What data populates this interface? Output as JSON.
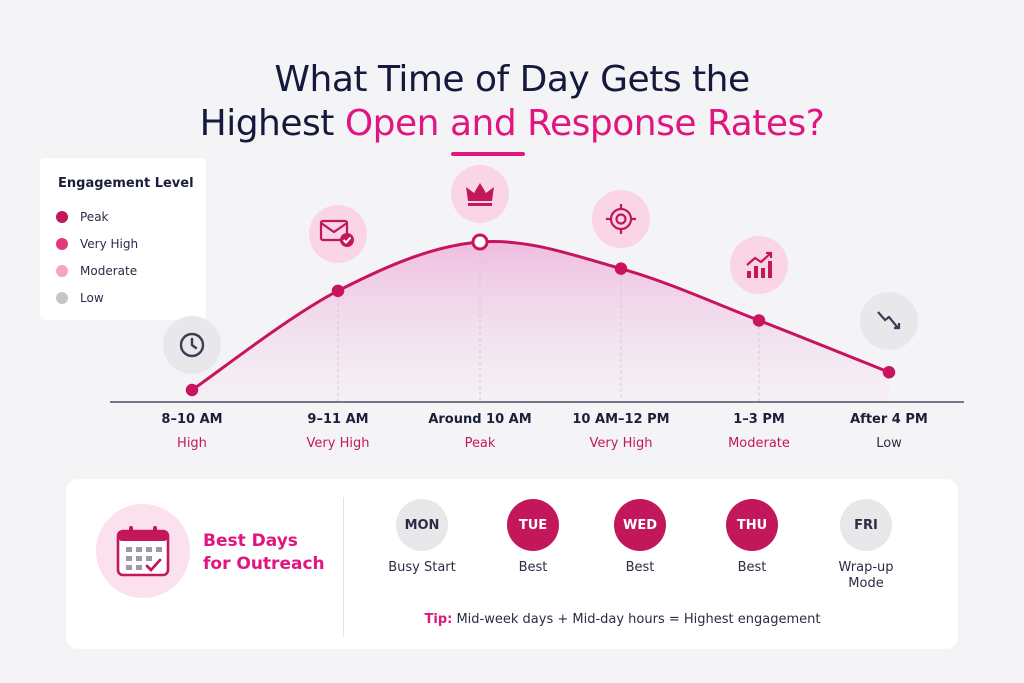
{
  "title_line1": "What Time of Day Gets the",
  "title_line2_plain": "Highest",
  "title_line2_accent": "Open and Response Rates?",
  "legend": {
    "title": "Engagement Level",
    "items": [
      {
        "label": "Peak",
        "color": "#c2185b"
      },
      {
        "label": "Very High",
        "color": "#e4387c"
      },
      {
        "label": "Moderate",
        "color": "#f6a3c6"
      },
      {
        "label": "Low",
        "color": "#c6c6c9"
      }
    ]
  },
  "chart_data": {
    "type": "area",
    "categories": [
      "8–10 AM",
      "9–11 AM",
      "Around 10 AM",
      "10 AM–12 PM",
      "1–3 PM",
      "After 4 PM"
    ],
    "levels": [
      "High",
      "Very High",
      "Peak",
      "Very High",
      "Moderate",
      "Low"
    ],
    "values": [
      0,
      67,
      100,
      82,
      47,
      12
    ],
    "ylim": [
      0,
      100
    ],
    "icons": [
      "clock-icon",
      "mail-check-icon",
      "crown-icon",
      "target-icon",
      "growth-chart-icon",
      "decline-icon"
    ],
    "line_color": "#c8145f",
    "fill_color": "#e879c4"
  },
  "best_days": {
    "title_line1": "Best Days",
    "title_line2": "for Outreach",
    "days": [
      {
        "abbr": "MON",
        "label_line1": "Busy Start",
        "label_line2": "",
        "highlight": false
      },
      {
        "abbr": "TUE",
        "label_line1": "Best",
        "label_line2": "",
        "highlight": true
      },
      {
        "abbr": "WED",
        "label_line1": "Best",
        "label_line2": "",
        "highlight": true
      },
      {
        "abbr": "THU",
        "label_line1": "Best",
        "label_line2": "",
        "highlight": true
      },
      {
        "abbr": "FRI",
        "label_line1": "Wrap-up",
        "label_line2": "Mode",
        "highlight": false
      }
    ],
    "tip_label": "Tip:",
    "tip_text": "Mid-week days + Mid-day hours = Highest engagement"
  }
}
